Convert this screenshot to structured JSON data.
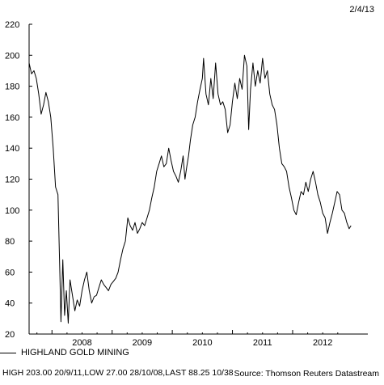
{
  "header": {
    "date": "2/4/13"
  },
  "legend": {
    "series_name": "HIGHLAND GOLD MINING"
  },
  "footer": {
    "stats": "HIGH 203.00 20/9/11,LOW 27.00 28/10/08,LAST 88.25 10/38",
    "source": "Source: Thomson Reuters Datastream"
  },
  "chart_data": {
    "type": "line",
    "title": "",
    "xlabel": "",
    "ylabel": "",
    "ylim": [
      20,
      220
    ],
    "xlim": [
      2007.62,
      2013.25
    ],
    "y_ticks": [
      20,
      40,
      60,
      80,
      100,
      120,
      140,
      160,
      180,
      200,
      220
    ],
    "x_tick_labels": [
      {
        "label": "2008",
        "at": 2008.0
      },
      {
        "label": "2009",
        "at": 2009.0
      },
      {
        "label": "2010",
        "at": 2010.0
      },
      {
        "label": "2011",
        "at": 2011.0
      },
      {
        "label": "2012",
        "at": 2012.0
      }
    ],
    "grid": false,
    "legend_position": "bottom-left",
    "series": [
      {
        "name": "HIGHLAND GOLD MINING",
        "color": "#000000",
        "points": [
          [
            2007.62,
            195
          ],
          [
            2007.66,
            188
          ],
          [
            2007.7,
            190
          ],
          [
            2007.74,
            185
          ],
          [
            2007.78,
            175
          ],
          [
            2007.82,
            162
          ],
          [
            2007.86,
            168
          ],
          [
            2007.9,
            176
          ],
          [
            2007.94,
            170
          ],
          [
            2007.98,
            160
          ],
          [
            2008.02,
            140
          ],
          [
            2008.06,
            115
          ],
          [
            2008.1,
            110
          ],
          [
            2008.13,
            60
          ],
          [
            2008.15,
            28
          ],
          [
            2008.18,
            68
          ],
          [
            2008.21,
            32
          ],
          [
            2008.24,
            48
          ],
          [
            2008.27,
            27
          ],
          [
            2008.3,
            55
          ],
          [
            2008.34,
            45
          ],
          [
            2008.38,
            35
          ],
          [
            2008.42,
            42
          ],
          [
            2008.46,
            38
          ],
          [
            2008.5,
            48
          ],
          [
            2008.54,
            55
          ],
          [
            2008.58,
            60
          ],
          [
            2008.62,
            48
          ],
          [
            2008.66,
            40
          ],
          [
            2008.7,
            44
          ],
          [
            2008.74,
            45
          ],
          [
            2008.78,
            50
          ],
          [
            2008.82,
            55
          ],
          [
            2008.86,
            52
          ],
          [
            2008.9,
            50
          ],
          [
            2008.94,
            48
          ],
          [
            2008.98,
            52
          ],
          [
            2009.02,
            54
          ],
          [
            2009.06,
            56
          ],
          [
            2009.1,
            60
          ],
          [
            2009.14,
            68
          ],
          [
            2009.18,
            75
          ],
          [
            2009.22,
            80
          ],
          [
            2009.26,
            95
          ],
          [
            2009.3,
            90
          ],
          [
            2009.34,
            87
          ],
          [
            2009.38,
            92
          ],
          [
            2009.42,
            85
          ],
          [
            2009.46,
            88
          ],
          [
            2009.5,
            92
          ],
          [
            2009.54,
            90
          ],
          [
            2009.58,
            95
          ],
          [
            2009.62,
            100
          ],
          [
            2009.66,
            108
          ],
          [
            2009.7,
            115
          ],
          [
            2009.74,
            125
          ],
          [
            2009.78,
            130
          ],
          [
            2009.82,
            135
          ],
          [
            2009.86,
            128
          ],
          [
            2009.9,
            130
          ],
          [
            2009.94,
            140
          ],
          [
            2009.98,
            132
          ],
          [
            2010.02,
            125
          ],
          [
            2010.06,
            122
          ],
          [
            2010.1,
            118
          ],
          [
            2010.14,
            125
          ],
          [
            2010.18,
            135
          ],
          [
            2010.21,
            120
          ],
          [
            2010.24,
            128
          ],
          [
            2010.27,
            135
          ],
          [
            2010.3,
            145
          ],
          [
            2010.34,
            155
          ],
          [
            2010.38,
            160
          ],
          [
            2010.42,
            170
          ],
          [
            2010.46,
            178
          ],
          [
            2010.5,
            185
          ],
          [
            2010.52,
            198
          ],
          [
            2010.56,
            175
          ],
          [
            2010.6,
            168
          ],
          [
            2010.64,
            185
          ],
          [
            2010.68,
            172
          ],
          [
            2010.72,
            195
          ],
          [
            2010.76,
            175
          ],
          [
            2010.8,
            168
          ],
          [
            2010.84,
            170
          ],
          [
            2010.88,
            165
          ],
          [
            2010.92,
            150
          ],
          [
            2010.96,
            155
          ],
          [
            2011.0,
            170
          ],
          [
            2011.04,
            182
          ],
          [
            2011.08,
            172
          ],
          [
            2011.12,
            185
          ],
          [
            2011.16,
            178
          ],
          [
            2011.2,
            200
          ],
          [
            2011.24,
            193
          ],
          [
            2011.27,
            152
          ],
          [
            2011.3,
            178
          ],
          [
            2011.34,
            195
          ],
          [
            2011.38,
            180
          ],
          [
            2011.42,
            190
          ],
          [
            2011.46,
            182
          ],
          [
            2011.5,
            198
          ],
          [
            2011.54,
            185
          ],
          [
            2011.58,
            190
          ],
          [
            2011.62,
            175
          ],
          [
            2011.66,
            168
          ],
          [
            2011.7,
            165
          ],
          [
            2011.74,
            155
          ],
          [
            2011.78,
            140
          ],
          [
            2011.82,
            130
          ],
          [
            2011.86,
            128
          ],
          [
            2011.9,
            125
          ],
          [
            2011.94,
            115
          ],
          [
            2011.98,
            108
          ],
          [
            2012.02,
            100
          ],
          [
            2012.06,
            97
          ],
          [
            2012.1,
            105
          ],
          [
            2012.14,
            112
          ],
          [
            2012.18,
            110
          ],
          [
            2012.22,
            118
          ],
          [
            2012.26,
            112
          ],
          [
            2012.3,
            120
          ],
          [
            2012.34,
            125
          ],
          [
            2012.38,
            118
          ],
          [
            2012.42,
            110
          ],
          [
            2012.46,
            105
          ],
          [
            2012.5,
            98
          ],
          [
            2012.54,
            95
          ],
          [
            2012.58,
            85
          ],
          [
            2012.62,
            92
          ],
          [
            2012.66,
            98
          ],
          [
            2012.7,
            105
          ],
          [
            2012.74,
            112
          ],
          [
            2012.78,
            110
          ],
          [
            2012.82,
            100
          ],
          [
            2012.86,
            98
          ],
          [
            2012.9,
            92
          ],
          [
            2012.94,
            88
          ],
          [
            2012.97,
            90
          ]
        ]
      }
    ]
  }
}
